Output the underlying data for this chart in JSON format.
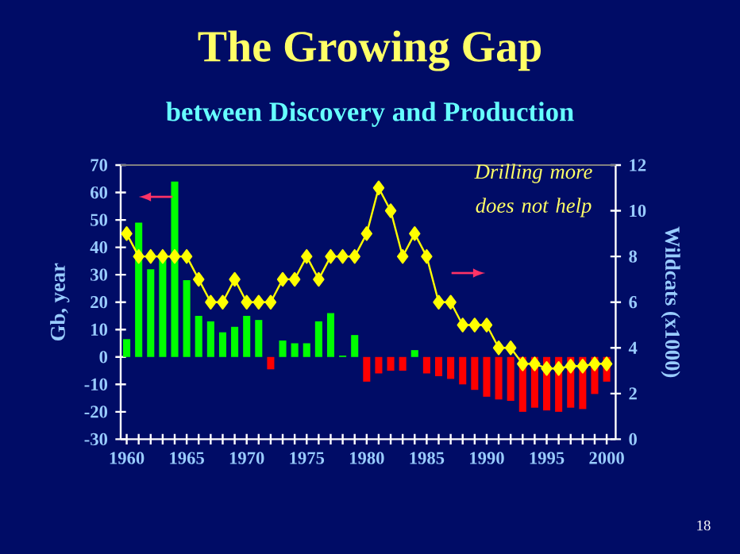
{
  "chart_data": {
    "type": "bar",
    "title": "The Growing Gap",
    "subtitle": "between Discovery and Production",
    "ylabel": "Gb, year",
    "y2label": "Wildcats (x1000)",
    "marker": "diamond",
    "x": [
      1960,
      1961,
      1962,
      1963,
      1964,
      1965,
      1966,
      1967,
      1968,
      1969,
      1970,
      1971,
      1972,
      1973,
      1974,
      1975,
      1976,
      1977,
      1978,
      1979,
      1980,
      1981,
      1982,
      1983,
      1984,
      1985,
      1986,
      1987,
      1988,
      1989,
      1990,
      1991,
      1992,
      1993,
      1994,
      1995,
      1996,
      1997,
      1998,
      1999,
      2000
    ],
    "xlim": [
      1959.5,
      2000.75
    ],
    "xticks": [
      1960,
      {
        "value": 1961,
        "label": null
      },
      {
        "value": 1962,
        "label": null
      },
      {
        "value": 1963,
        "label": null
      },
      {
        "value": 1964,
        "label": null
      },
      1965,
      {
        "value": 1966,
        "label": null
      },
      {
        "value": 1967,
        "label": null
      },
      {
        "value": 1968,
        "label": null
      },
      {
        "value": 1969,
        "label": null
      },
      1970,
      {
        "value": 1971,
        "label": null
      },
      {
        "value": 1972,
        "label": null
      },
      {
        "value": 1973,
        "label": null
      },
      {
        "value": 1974,
        "label": null
      },
      1975,
      {
        "value": 1976,
        "label": null
      },
      {
        "value": 1977,
        "label": null
      },
      {
        "value": 1978,
        "label": null
      },
      {
        "value": 1979,
        "label": null
      },
      1980,
      {
        "value": 1981,
        "label": null
      },
      {
        "value": 1982,
        "label": null
      },
      {
        "value": 1983,
        "label": null
      },
      {
        "value": 1984,
        "label": null
      },
      1985,
      {
        "value": 1986,
        "label": null
      },
      {
        "value": 1987,
        "label": null
      },
      {
        "value": 1988,
        "label": null
      },
      {
        "value": 1989,
        "label": null
      },
      1990,
      {
        "value": 1991,
        "label": null
      },
      {
        "value": 1992,
        "label": null
      },
      {
        "value": 1993,
        "label": null
      },
      {
        "value": 1994,
        "label": null
      },
      1995,
      {
        "value": 1996,
        "label": null
      },
      {
        "value": 1997,
        "label": null
      },
      {
        "value": 1998,
        "label": null
      },
      {
        "value": 1999,
        "label": null
      },
      2000
    ],
    "ylim": [
      -30,
      70
    ],
    "yticks": [
      -30,
      -20,
      -10,
      0,
      10,
      20,
      30,
      40,
      50,
      60,
      70
    ],
    "y2lim": [
      0,
      12
    ],
    "y2ticks": [
      0,
      2,
      4,
      6,
      8,
      10,
      12
    ],
    "series": [
      {
        "values": [
          6.5,
          49,
          32,
          36,
          64,
          28,
          15,
          13,
          9,
          11,
          15,
          13.5,
          -4.5,
          6,
          5,
          5,
          13,
          16,
          0.5,
          8,
          -9,
          -6,
          -5,
          -5,
          2.5,
          -6,
          -7,
          -8,
          -10,
          -12,
          -14.5,
          -15.5,
          -16,
          -20,
          -18.5,
          -19.5,
          -20,
          -18.5,
          -19,
          -13.5,
          -9
        ],
        "colors": [
          "#00ff00",
          "#00ff00",
          "#00ff00",
          "#00ff00",
          "#00ff00",
          "#00ff00",
          "#00ff00",
          "#00ff00",
          "#00ff00",
          "#00ff00",
          "#00ff00",
          "#00ff00",
          "#ff0000",
          "#00ff00",
          "#00ff00",
          "#00ff00",
          "#00ff00",
          "#00ff00",
          "#00ff00",
          "#00ff00",
          "#ff0000",
          "#ff0000",
          "#ff0000",
          "#ff0000",
          "#00ff00",
          "#ff0000",
          "#ff0000",
          "#ff0000",
          "#ff0000",
          "#ff0000",
          "#ff0000",
          "#ff0000",
          "#ff0000",
          "#ff0000",
          "#ff0000",
          "#ff0000",
          "#ff0000",
          "#ff0000",
          "#ff0000",
          "#ff0000",
          "#ff0000"
        ]
      },
      {
        "type": "line",
        "axis": "y2",
        "color": "#ffff00",
        "values": [
          9,
          8,
          8,
          8,
          8,
          8,
          7,
          6,
          6,
          7,
          6,
          6,
          6,
          7,
          7,
          8,
          7,
          8,
          8,
          8,
          9,
          11,
          10,
          8,
          9,
          8,
          6,
          6,
          5,
          5,
          5,
          4,
          4,
          3.3,
          3.3,
          3.1,
          3.1,
          3.2,
          3.2,
          3.3,
          3.3
        ]
      }
    ],
    "annotations": [
      "Drilling more does not help",
      "18"
    ]
  }
}
